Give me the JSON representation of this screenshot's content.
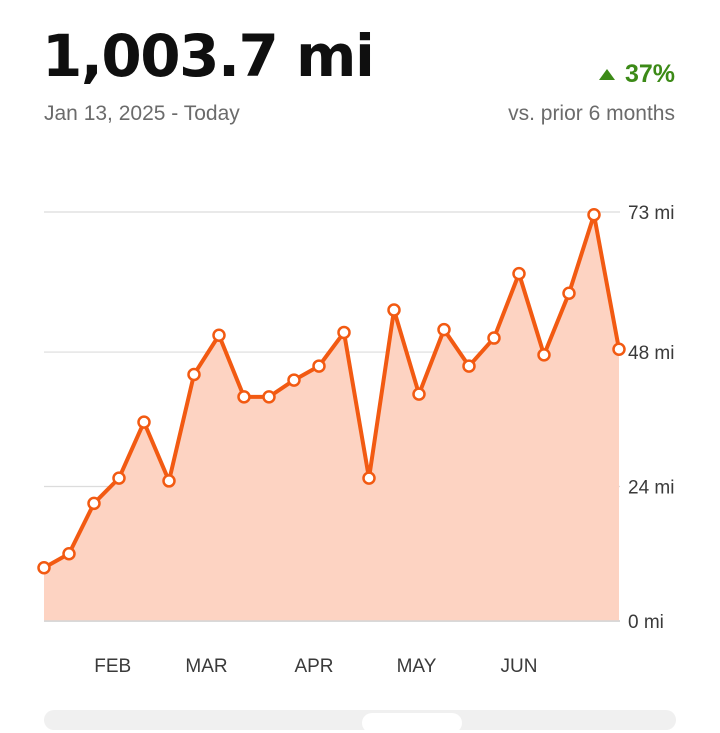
{
  "header": {
    "total": "1,003.7 mi",
    "date_range": "Jan 13, 2025 - Today",
    "change_percent": "37%",
    "comparison_label": "vs. prior 6 months"
  },
  "colors": {
    "line": "#f25a12",
    "fill": "#fdd3c2",
    "change_positive": "#3c8a17",
    "grid": "#dcdcdc"
  },
  "chart_data": {
    "type": "area",
    "y_unit": "mi",
    "ylim": [
      0,
      73
    ],
    "y_ticks": [
      "0 mi",
      "24 mi",
      "48 mi",
      "73 mi"
    ],
    "y_tick_values": [
      0,
      24,
      48,
      73
    ],
    "x_tick_labels": [
      "FEB",
      "MAR",
      "APR",
      "MAY",
      "JUN"
    ],
    "x_tick_weeks": [
      2.75,
      6.5,
      10.8,
      14.9,
      19.0
    ],
    "grid": true,
    "series": [
      {
        "values": [
          9.5,
          12,
          21,
          25.5,
          35.5,
          25,
          44,
          51,
          40,
          40,
          43,
          45.5,
          51.5,
          25.5,
          55.5,
          40.5,
          52,
          45.5,
          50.5,
          62,
          47.5,
          58.5,
          72.5,
          48.5
        ]
      }
    ]
  }
}
